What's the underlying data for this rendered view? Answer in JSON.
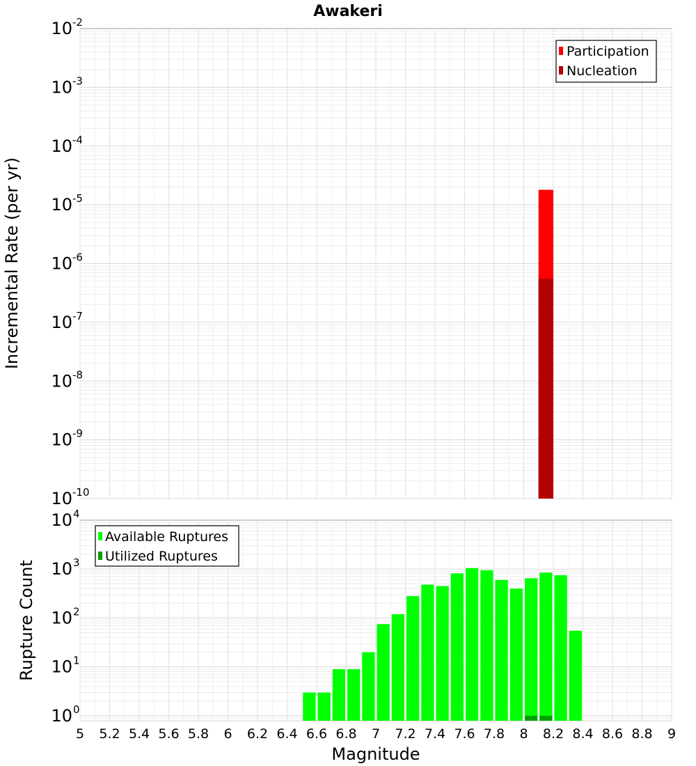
{
  "figure": {
    "title": "Awakeri"
  },
  "chart_data": [
    {
      "type": "bar",
      "ylabel": "Incremental Rate (per yr)",
      "xlabel": "",
      "xlim": [
        5,
        9
      ],
      "ylim_exponents": [
        -10,
        -2
      ],
      "yscale": "log",
      "ytick_base": "10",
      "yticks": [
        {
          "exp": "-10"
        },
        {
          "exp": "-9"
        },
        {
          "exp": "-8"
        },
        {
          "exp": "-7"
        },
        {
          "exp": "-6"
        },
        {
          "exp": "-5"
        },
        {
          "exp": "-4"
        },
        {
          "exp": "-3"
        },
        {
          "exp": "-2"
        }
      ],
      "bar_width": 0.1,
      "grid": true,
      "legend_position": "top-right",
      "series": [
        {
          "name": "Participation",
          "color": "#ff0000",
          "points": [
            {
              "x": 8.15,
              "y": 1.8e-05
            }
          ]
        },
        {
          "name": "Nucleation",
          "color": "#b30000",
          "points": [
            {
              "x": 8.15,
              "y": 5.5e-07
            }
          ]
        }
      ]
    },
    {
      "type": "bar",
      "ylabel": "Rupture Count",
      "xlabel": "Magnitude",
      "xlim": [
        5,
        9
      ],
      "ylim_exponents": [
        -0.1,
        4
      ],
      "yscale": "log",
      "ytick_base": "10",
      "yticks": [
        {
          "exp": "0"
        },
        {
          "exp": "1"
        },
        {
          "exp": "2"
        },
        {
          "exp": "3"
        },
        {
          "exp": "4"
        }
      ],
      "xticks": [
        "5",
        "5.2",
        "5.4",
        "5.6",
        "5.8",
        "6",
        "6.2",
        "6.4",
        "6.6",
        "6.8",
        "7",
        "7.2",
        "7.4",
        "7.6",
        "7.8",
        "8",
        "8.2",
        "8.4",
        "8.6",
        "8.8",
        "9"
      ],
      "bar_width": 0.1,
      "grid": true,
      "legend_position": "top-left",
      "series": [
        {
          "name": "Available Ruptures",
          "color": "#00ff00",
          "points": [
            {
              "x": 6.55,
              "y": 3
            },
            {
              "x": 6.65,
              "y": 3
            },
            {
              "x": 6.75,
              "y": 9
            },
            {
              "x": 6.85,
              "y": 9
            },
            {
              "x": 6.95,
              "y": 20
            },
            {
              "x": 7.05,
              "y": 75
            },
            {
              "x": 7.15,
              "y": 120
            },
            {
              "x": 7.25,
              "y": 280
            },
            {
              "x": 7.35,
              "y": 480
            },
            {
              "x": 7.45,
              "y": 450
            },
            {
              "x": 7.55,
              "y": 820
            },
            {
              "x": 7.65,
              "y": 1050
            },
            {
              "x": 7.75,
              "y": 950
            },
            {
              "x": 7.85,
              "y": 600
            },
            {
              "x": 7.95,
              "y": 400
            },
            {
              "x": 8.05,
              "y": 650
            },
            {
              "x": 8.15,
              "y": 850
            },
            {
              "x": 8.25,
              "y": 750
            },
            {
              "x": 8.35,
              "y": 55
            }
          ]
        },
        {
          "name": "Utilized Ruptures",
          "color": "#00a000",
          "points": [
            {
              "x": 8.05,
              "y": 1
            },
            {
              "x": 8.15,
              "y": 1
            }
          ]
        }
      ]
    }
  ]
}
